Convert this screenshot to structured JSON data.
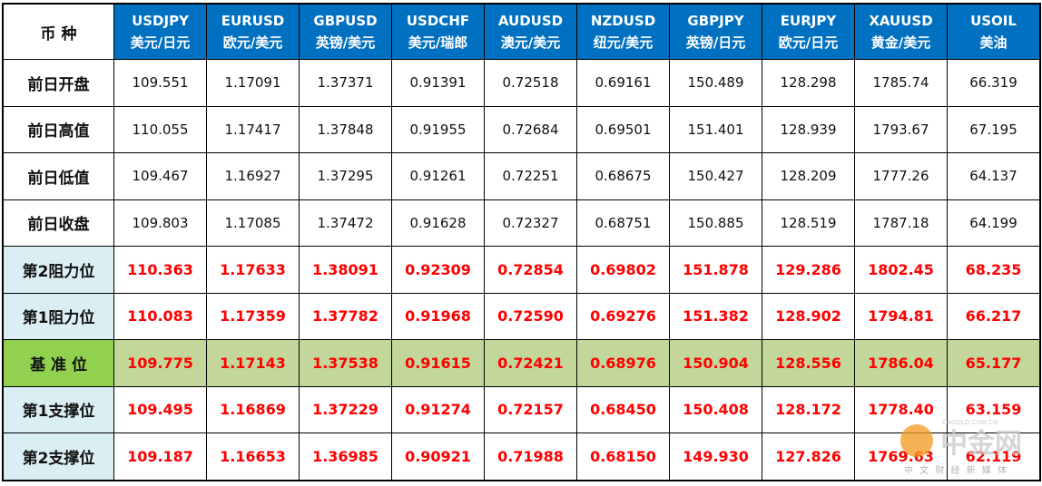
{
  "table": {
    "corner": "币 种",
    "columns": [
      {
        "code": "USDJPY",
        "name": "美元/日元"
      },
      {
        "code": "EURUSD",
        "name": "欧元/美元"
      },
      {
        "code": "GBPUSD",
        "name": "英镑/美元"
      },
      {
        "code": "USDCHF",
        "name": "美元/瑞郎"
      },
      {
        "code": "AUDUSD",
        "name": "澳元/美元"
      },
      {
        "code": "NZDUSD",
        "name": "纽元/美元"
      },
      {
        "code": "GBPJPY",
        "name": "英镑/日元"
      },
      {
        "code": "EURJPY",
        "name": "欧元/日元"
      },
      {
        "code": "XAUUSD",
        "name": "黄金/美元"
      },
      {
        "code": "USOIL",
        "name": "美油"
      }
    ],
    "rows": [
      {
        "label": "前日开盘",
        "values": [
          "109.551",
          "1.17091",
          "1.37371",
          "0.91391",
          "0.72518",
          "0.69161",
          "150.489",
          "128.298",
          "1785.74",
          "66.319"
        ]
      },
      {
        "label": "前日高值",
        "values": [
          "110.055",
          "1.17417",
          "1.37848",
          "0.91955",
          "0.72684",
          "0.69501",
          "151.401",
          "128.939",
          "1793.67",
          "67.195"
        ]
      },
      {
        "label": "前日低值",
        "values": [
          "109.467",
          "1.16927",
          "1.37295",
          "0.91261",
          "0.72251",
          "0.68675",
          "150.427",
          "128.209",
          "1777.26",
          "64.137"
        ]
      },
      {
        "label": "前日收盘",
        "values": [
          "109.803",
          "1.17085",
          "1.37472",
          "0.91628",
          "0.72327",
          "0.68751",
          "150.885",
          "128.519",
          "1787.18",
          "64.199"
        ]
      },
      {
        "label": "第2阻力位",
        "values": [
          "110.363",
          "1.17633",
          "1.38091",
          "0.92309",
          "0.72854",
          "0.69802",
          "151.878",
          "129.286",
          "1802.45",
          "68.235"
        ]
      },
      {
        "label": "第1阻力位",
        "values": [
          "110.083",
          "1.17359",
          "1.37782",
          "0.91968",
          "0.72590",
          "0.69276",
          "151.382",
          "128.902",
          "1794.81",
          "66.217"
        ]
      },
      {
        "label": "基 准 位",
        "values": [
          "109.775",
          "1.17143",
          "1.37538",
          "0.91615",
          "0.72421",
          "0.68976",
          "150.904",
          "128.556",
          "1786.04",
          "65.177"
        ]
      },
      {
        "label": "第1支撑位",
        "values": [
          "109.495",
          "1.16869",
          "1.37229",
          "0.91274",
          "0.72157",
          "0.68450",
          "150.408",
          "128.172",
          "1778.40",
          "63.159"
        ]
      },
      {
        "label": "第2支撑位",
        "values": [
          "109.187",
          "1.16653",
          "1.36985",
          "0.90921",
          "0.71988",
          "0.68150",
          "149.930",
          "127.826",
          "1769.63",
          "62.119"
        ]
      }
    ]
  },
  "watermark": {
    "name": "中金网",
    "domain": "CNGOLD.COM.CN",
    "slogan": "中 文 财 经 新 媒 体"
  }
}
